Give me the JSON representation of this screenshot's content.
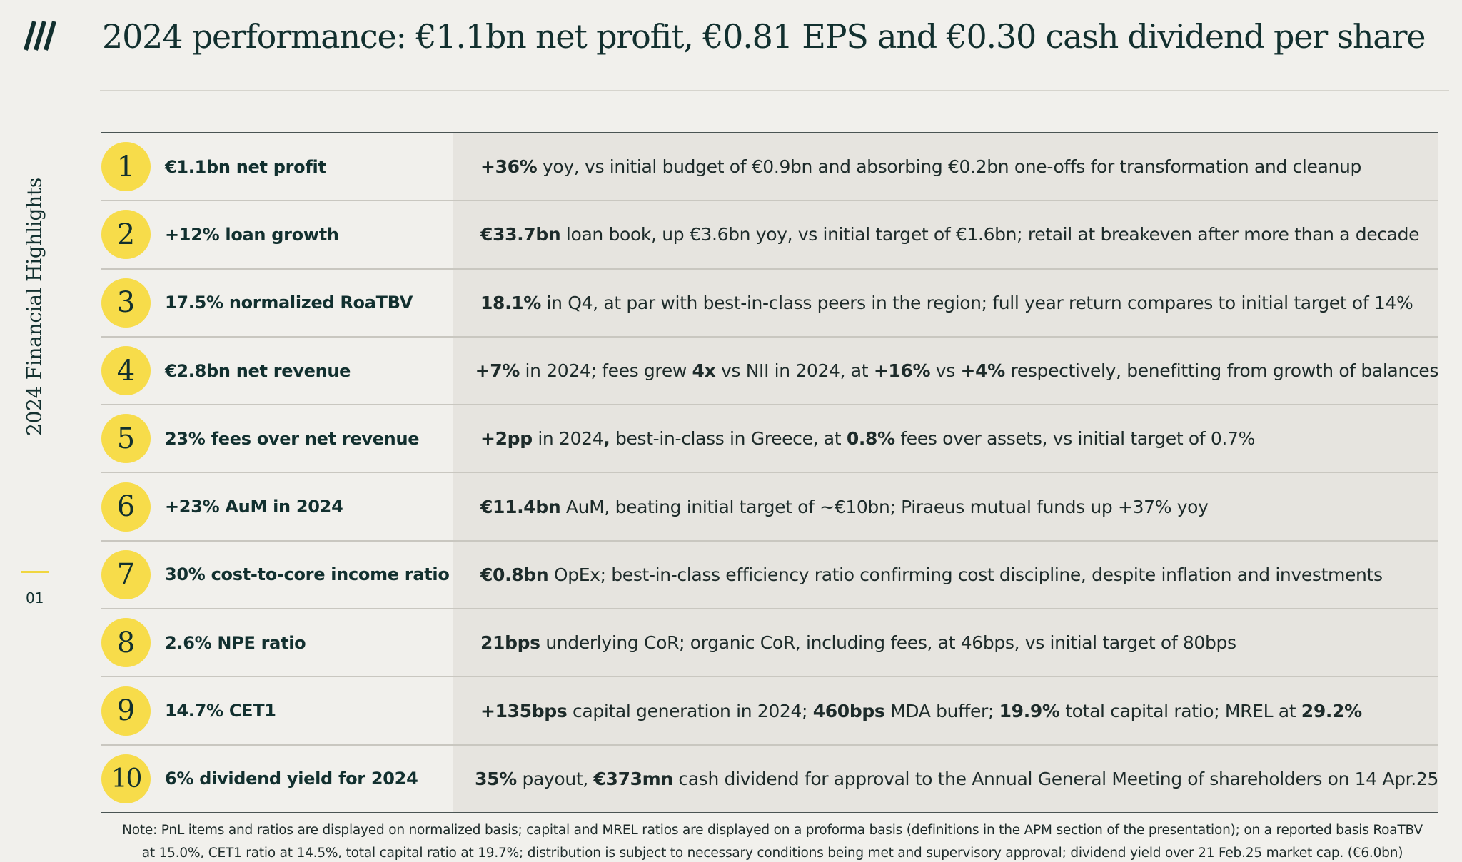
{
  "header": {
    "title": "2024 performance: €1.1bn net profit, €0.81 EPS and €0.30 cash dividend per share"
  },
  "sidebar": {
    "section_label": "2024 Financial Highlights",
    "page_number": "01"
  },
  "colors": {
    "accent_yellow": "#f7dc4a",
    "text_dark": "#12302f",
    "background": "#f1f0ec",
    "detail_band": "#e6e4df"
  },
  "rows": [
    {
      "number": "1",
      "headline": "€1.1bn net profit",
      "detail": [
        {
          "t": "+36%",
          "b": true
        },
        {
          "t": " yoy, vs initial budget of €0.9bn and absorbing €0.2bn one-offs for transformation and cleanup",
          "b": false
        }
      ]
    },
    {
      "number": "2",
      "headline": "+12% loan growth",
      "detail": [
        {
          "t": "€33.7bn",
          "b": true
        },
        {
          "t": " loan book, up €3.6bn yoy, vs initial target of €1.6bn; retail at breakeven after more than a decade",
          "b": false
        }
      ]
    },
    {
      "number": "3",
      "headline": "17.5% normalized RoaTBV",
      "detail": [
        {
          "t": "18.1%",
          "b": true
        },
        {
          "t": " in Q4, at par with best-in-class peers in the region; full year return compares to initial target of 14%",
          "b": false
        }
      ]
    },
    {
      "number": "4",
      "headline": "€2.8bn net revenue",
      "detail": [
        {
          "t": "+7%",
          "b": true
        },
        {
          "t": " in 2024; fees grew ",
          "b": false
        },
        {
          "t": "4x",
          "b": true
        },
        {
          "t": " vs NII in 2024, at ",
          "b": false
        },
        {
          "t": "+16%",
          "b": true
        },
        {
          "t": " vs ",
          "b": false
        },
        {
          "t": "+4%",
          "b": true
        },
        {
          "t": " respectively, benefitting from growth of balances",
          "b": false
        }
      ]
    },
    {
      "number": "5",
      "headline": "23% fees over net revenue",
      "detail": [
        {
          "t": "+2pp",
          "b": true
        },
        {
          "t": " in 2024",
          "b": false
        },
        {
          "t": ",",
          "b": true
        },
        {
          "t": " best-in-class in Greece, at ",
          "b": false
        },
        {
          "t": "0.8%",
          "b": true
        },
        {
          "t": " fees over assets, vs initial target of 0.7%",
          "b": false
        }
      ]
    },
    {
      "number": "6",
      "headline": "+23% AuM in 2024",
      "detail": [
        {
          "t": "€11.4bn",
          "b": true
        },
        {
          "t": " AuM, beating initial target of ~€10bn; Piraeus mutual funds up +37% yoy",
          "b": false
        }
      ]
    },
    {
      "number": "7",
      "headline": "30% cost-to-core income ratio",
      "detail": [
        {
          "t": "€0.8bn",
          "b": true
        },
        {
          "t": " OpEx; best-in-class efficiency ratio confirming cost discipline, despite inflation and investments",
          "b": false
        }
      ]
    },
    {
      "number": "8",
      "headline": "2.6% NPE ratio",
      "detail": [
        {
          "t": "21bps",
          "b": true
        },
        {
          "t": " underlying CoR; organic CoR, including fees, at 46bps, vs initial target of 80bps",
          "b": false
        }
      ]
    },
    {
      "number": "9",
      "headline": "14.7% CET1",
      "detail": [
        {
          "t": "+135bps",
          "b": true
        },
        {
          "t": " capital generation in 2024; ",
          "b": false
        },
        {
          "t": "460bps",
          "b": true
        },
        {
          "t": " MDA buffer; ",
          "b": false
        },
        {
          "t": "19.9%",
          "b": true
        },
        {
          "t": " total capital ratio; MREL at ",
          "b": false
        },
        {
          "t": "29.2%",
          "b": true
        }
      ]
    },
    {
      "number": "10",
      "headline": "6% dividend yield for 2024",
      "detail": [
        {
          "t": "35%",
          "b": true
        },
        {
          "t": " payout, ",
          "b": false
        },
        {
          "t": "€373mn",
          "b": true
        },
        {
          "t": " cash dividend for approval to the Annual General Meeting of shareholders on 14 Apr.25",
          "b": false
        }
      ]
    }
  ],
  "footnote": {
    "line1": "Note: PnL items and ratios are displayed on normalized basis; capital and MREL ratios are displayed on a proforma basis (definitions in the APM section of the presentation); on a reported basis RoaTBV",
    "line2": "at 15.0%, CET1 ratio at 14.5%, total capital ratio at 19.7%; distribution is subject to necessary conditions being met and supervisory approval; dividend yield over 21 Feb.25 market cap. (€6.0bn)"
  }
}
